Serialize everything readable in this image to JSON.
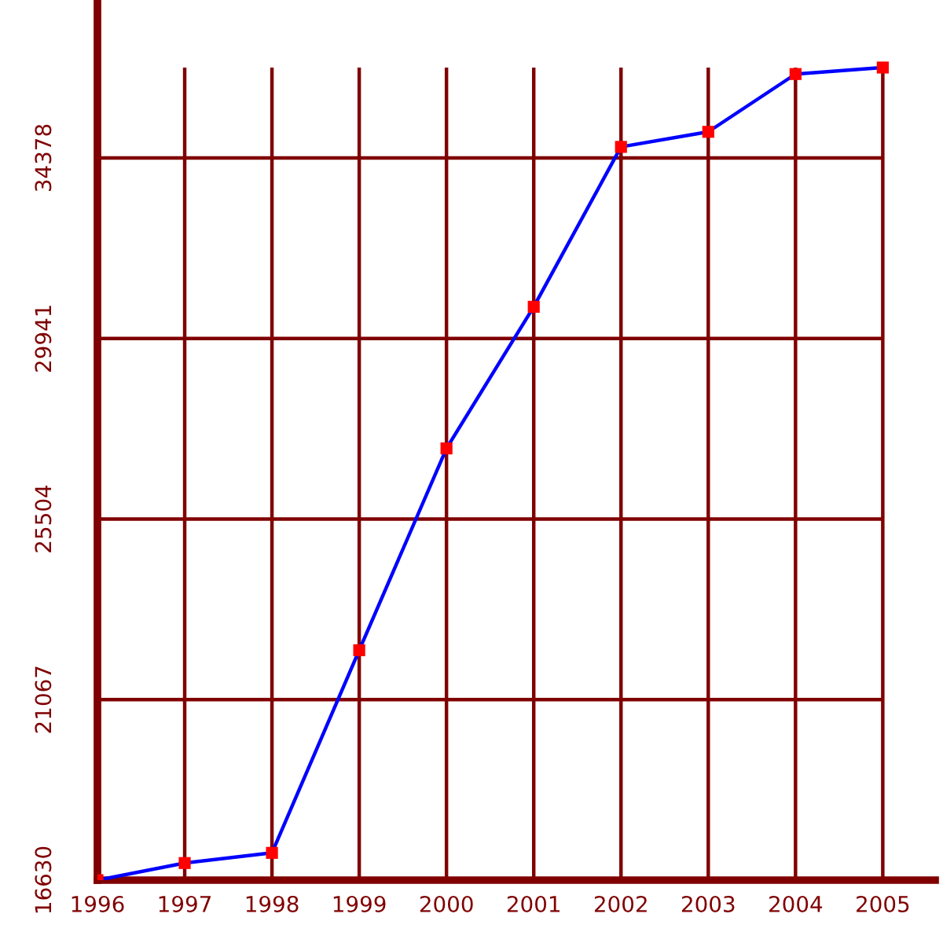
{
  "chart_data": {
    "type": "line",
    "x": [
      1996,
      1997,
      1998,
      1999,
      2000,
      2001,
      2002,
      2003,
      2004,
      2005
    ],
    "series": [
      {
        "color": "#0000ff",
        "colors": [
          "#ff0000",
          "#ff0000",
          "#ff0000",
          "#ff0000",
          "#ff0000",
          "#ff0000",
          "#ff0000",
          "#ff0000",
          "#ff0000",
          "#ff0000"
        ],
        "values": [
          16630,
          17050,
          17300,
          22280,
          27240,
          30720,
          34650,
          35020,
          36440,
          36600
        ]
      }
    ],
    "xlim": [
      1996,
      2005.6
    ],
    "xticks": [
      1996,
      1997,
      1998,
      1999,
      2000,
      2001,
      2002,
      2003,
      2004,
      2005
    ],
    "ylim": [
      16630,
      38260
    ],
    "yticks": [
      16630,
      21067,
      25504,
      29941,
      34378
    ],
    "grid": true,
    "marker": "square",
    "line_style": "solid"
  }
}
